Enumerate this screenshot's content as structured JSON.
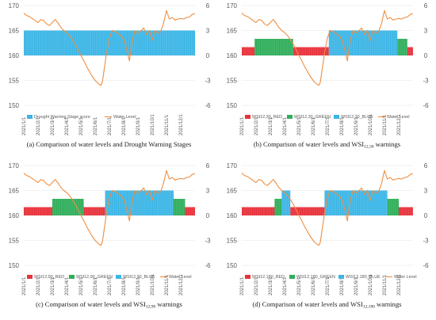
{
  "figure": {
    "colors": {
      "red": "#E8313A",
      "green": "#2FAE5A",
      "blue": "#3BB6E6",
      "water": "#ED8F43",
      "axis_text": "#595959",
      "grid": "#E6E6E6"
    }
  },
  "chart_data": [
    {
      "panel_id": "a",
      "type": "bar",
      "caption_prefix": "(a) Comparison of water levels and Drought Warning Stages",
      "caption_sub": "",
      "caption_suffix": "",
      "ylim": [
        150,
        170
      ],
      "y_ticks": [
        "150",
        "155",
        "160",
        "165",
        "170"
      ],
      "y2lim": [
        -6,
        6
      ],
      "y2_ticks": [
        "-6",
        "-3",
        "0",
        "3",
        "6"
      ],
      "x_ticks": [
        "2021/1/1",
        "2021/2/1",
        "2021/3/1",
        "2021/4/1",
        "2021/5/1",
        "2021/6/1",
        "2021/7/1",
        "2021/8/1",
        "2021/9/1",
        "2021/10/1",
        "2021/11/1",
        "2021/12/1"
      ],
      "series": [
        {
          "name": "Drought Warning Stage score",
          "color": "#3BB6E6",
          "segments": [
            {
              "start": 0,
              "end": 12,
              "value": 3
            }
          ]
        }
      ],
      "water_level": {
        "name": "Water Level",
        "color": "#ED8F43",
        "months": [
          0,
          0.2,
          0.4,
          0.6,
          0.8,
          1.0,
          1.2,
          1.4,
          1.6,
          1.8,
          2.0,
          2.2,
          2.4,
          2.6,
          2.8,
          3.0,
          3.2,
          3.4,
          3.6,
          3.8,
          4.0,
          4.2,
          4.4,
          4.6,
          4.8,
          5.0,
          5.2,
          5.4,
          5.5,
          5.6,
          5.8,
          6.0,
          6.2,
          6.4,
          6.6,
          6.8,
          7.0,
          7.2,
          7.4,
          7.6,
          7.8,
          8.0,
          8.2,
          8.4,
          8.6,
          8.8,
          9.0,
          9.2,
          9.4,
          9.6,
          9.8,
          10.0,
          10.2,
          10.4,
          10.6,
          10.8,
          11.0,
          11.2,
          11.4,
          11.6,
          11.8,
          12.0
        ],
        "values": [
          168.5,
          168.0,
          167.8,
          167.4,
          167.0,
          166.6,
          167.2,
          167.0,
          166.3,
          166.0,
          166.6,
          167.2,
          166.5,
          165.6,
          165.0,
          164.6,
          164.0,
          163.2,
          162.3,
          161.2,
          160.0,
          159.0,
          157.8,
          156.8,
          155.8,
          155.0,
          154.4,
          154.0,
          154.6,
          156.5,
          160.5,
          163.5,
          165.0,
          164.8,
          164.4,
          164.0,
          163.2,
          161.4,
          158.9,
          163.0,
          165.0,
          164.5,
          164.9,
          165.5,
          164.2,
          165.0,
          163.0,
          165.0,
          164.5,
          164.8,
          166.5,
          169.0,
          167.3,
          167.6,
          167.1,
          167.3,
          167.4,
          167.3,
          167.6,
          167.7,
          168.2,
          168.4
        ]
      }
    },
    {
      "panel_id": "b",
      "type": "bar",
      "caption_prefix": "(b) Comparison of water levels and WSI",
      "caption_sub": "12,30",
      "caption_suffix": " warnings",
      "ylim": [
        150,
        170
      ],
      "y_ticks": [
        "150",
        "155",
        "160",
        "165",
        "170"
      ],
      "y2lim": [
        -6,
        6
      ],
      "y2_ticks": [
        "-6",
        "-3",
        "0",
        "3",
        "6"
      ],
      "x_ticks": [
        "2021/1/1",
        "2021/2/1",
        "2021/3/1",
        "2021/4/1",
        "2021/5/1",
        "2021/6/1",
        "2021/7/1",
        "2021/8/1",
        "2021/9/1",
        "2021/10/1",
        "2021/11/1",
        "2021/12/1"
      ],
      "series": [
        {
          "name": "WSI12,30_RED",
          "color": "#E8313A",
          "segments": [
            {
              "start": 0,
              "end": 0.9,
              "value": 1
            },
            {
              "start": 3.6,
              "end": 6.1,
              "value": 1
            },
            {
              "start": 11.6,
              "end": 12,
              "value": 1
            }
          ]
        },
        {
          "name": "WSI12,30_GREEN",
          "color": "#2FAE5A",
          "segments": [
            {
              "start": 0.9,
              "end": 3.6,
              "value": 2
            },
            {
              "start": 10.9,
              "end": 11.6,
              "value": 2
            }
          ]
        },
        {
          "name": "WSI12,30_BLUE",
          "color": "#3BB6E6",
          "segments": [
            {
              "start": 6.1,
              "end": 10.9,
              "value": 3
            }
          ]
        }
      ],
      "water_level": {
        "name": "Water Level",
        "color": "#ED8F43",
        "months": [
          0,
          0.2,
          0.4,
          0.6,
          0.8,
          1.0,
          1.2,
          1.4,
          1.6,
          1.8,
          2.0,
          2.2,
          2.4,
          2.6,
          2.8,
          3.0,
          3.2,
          3.4,
          3.6,
          3.8,
          4.0,
          4.2,
          4.4,
          4.6,
          4.8,
          5.0,
          5.2,
          5.4,
          5.5,
          5.6,
          5.8,
          6.0,
          6.2,
          6.4,
          6.6,
          6.8,
          7.0,
          7.2,
          7.4,
          7.6,
          7.8,
          8.0,
          8.2,
          8.4,
          8.6,
          8.8,
          9.0,
          9.2,
          9.4,
          9.6,
          9.8,
          10.0,
          10.2,
          10.4,
          10.6,
          10.8,
          11.0,
          11.2,
          11.4,
          11.6,
          11.8,
          12.0
        ],
        "values": [
          168.5,
          168.0,
          167.8,
          167.4,
          167.0,
          166.6,
          167.2,
          167.0,
          166.3,
          166.0,
          166.6,
          167.2,
          166.5,
          165.6,
          165.0,
          164.6,
          164.0,
          163.2,
          162.3,
          161.2,
          160.0,
          159.0,
          157.8,
          156.8,
          155.8,
          155.0,
          154.4,
          154.0,
          154.6,
          156.5,
          160.5,
          163.5,
          165.0,
          164.8,
          164.4,
          164.0,
          163.2,
          161.4,
          158.9,
          163.0,
          165.0,
          164.5,
          164.9,
          165.5,
          164.2,
          165.0,
          163.0,
          165.0,
          164.5,
          164.8,
          166.5,
          169.0,
          167.3,
          167.6,
          167.1,
          167.3,
          167.4,
          167.3,
          167.6,
          167.7,
          168.2,
          168.4
        ]
      }
    },
    {
      "panel_id": "c",
      "type": "bar",
      "caption_prefix": "(c) Comparison of water levels and WSI",
      "caption_sub": "12,90",
      "caption_suffix": " warnings",
      "ylim": [
        150,
        170
      ],
      "y_ticks": [
        "150",
        "155",
        "160",
        "165",
        "170"
      ],
      "y2lim": [
        -6,
        6
      ],
      "y2_ticks": [
        "-6",
        "-3",
        "0",
        "3",
        "6"
      ],
      "x_ticks": [
        "2021/1/1",
        "2021/2/1",
        "2021/3/1",
        "2021/4/1",
        "2021/5/1",
        "2021/6/1",
        "2021/7/1",
        "2021/8/1",
        "2021/9/1",
        "2021/10/1",
        "2021/11/1",
        "2021/12/1"
      ],
      "series": [
        {
          "name": "WSI12,90_RED",
          "color": "#E8313A",
          "segments": [
            {
              "start": 0,
              "end": 2.0,
              "value": 1
            },
            {
              "start": 4.2,
              "end": 5.7,
              "value": 1
            },
            {
              "start": 11.3,
              "end": 12,
              "value": 1
            }
          ]
        },
        {
          "name": "WSI12,90_GREEN",
          "color": "#2FAE5A",
          "segments": [
            {
              "start": 2.0,
              "end": 4.2,
              "value": 2
            },
            {
              "start": 10.5,
              "end": 11.3,
              "value": 2
            }
          ]
        },
        {
          "name": "WSI12,90_BLUE",
          "color": "#3BB6E6",
          "segments": [
            {
              "start": 5.7,
              "end": 10.5,
              "value": 3
            }
          ]
        }
      ],
      "water_level": {
        "name": "Water Level",
        "color": "#ED8F43",
        "months": [
          0,
          0.2,
          0.4,
          0.6,
          0.8,
          1.0,
          1.2,
          1.4,
          1.6,
          1.8,
          2.0,
          2.2,
          2.4,
          2.6,
          2.8,
          3.0,
          3.2,
          3.4,
          3.6,
          3.8,
          4.0,
          4.2,
          4.4,
          4.6,
          4.8,
          5.0,
          5.2,
          5.4,
          5.5,
          5.6,
          5.8,
          6.0,
          6.2,
          6.4,
          6.6,
          6.8,
          7.0,
          7.2,
          7.4,
          7.6,
          7.8,
          8.0,
          8.2,
          8.4,
          8.6,
          8.8,
          9.0,
          9.2,
          9.4,
          9.6,
          9.8,
          10.0,
          10.2,
          10.4,
          10.6,
          10.8,
          11.0,
          11.2,
          11.4,
          11.6,
          11.8,
          12.0
        ],
        "values": [
          168.5,
          168.0,
          167.8,
          167.4,
          167.0,
          166.6,
          167.2,
          167.0,
          166.3,
          166.0,
          166.6,
          167.2,
          166.5,
          165.6,
          165.0,
          164.6,
          164.0,
          163.2,
          162.3,
          161.2,
          160.0,
          159.0,
          157.8,
          156.8,
          155.8,
          155.0,
          154.4,
          154.0,
          154.6,
          156.5,
          160.5,
          163.5,
          165.0,
          164.8,
          164.4,
          164.0,
          163.2,
          161.4,
          158.9,
          163.0,
          165.0,
          164.5,
          164.9,
          165.5,
          164.2,
          165.0,
          163.0,
          165.0,
          164.5,
          164.8,
          166.5,
          169.0,
          167.3,
          167.6,
          167.1,
          167.3,
          167.4,
          167.3,
          167.6,
          167.7,
          168.2,
          168.4
        ]
      }
    },
    {
      "panel_id": "d",
      "type": "bar",
      "caption_prefix": "(d) Comparison of water levels and WSI",
      "caption_sub": "12,180",
      "caption_suffix": " warnings",
      "ylim": [
        150,
        170
      ],
      "y_ticks": [
        "150",
        "155",
        "160",
        "165",
        "170"
      ],
      "y2lim": [
        -6,
        6
      ],
      "y2_ticks": [
        "-6",
        "-3",
        "0",
        "3",
        "6"
      ],
      "x_ticks": [
        "2021/1/1",
        "2021/2/1",
        "2021/3/1",
        "2021/4/1",
        "2021/5/1",
        "2021/6/1",
        "2021/7/1",
        "2021/8/1",
        "2021/9/1",
        "2021/10/1",
        "2021/11/1",
        "2021/12/1"
      ],
      "series": [
        {
          "name": "WSI12,180_RED",
          "color": "#E8313A",
          "segments": [
            {
              "start": 0,
              "end": 2.3,
              "value": 1
            },
            {
              "start": 3.4,
              "end": 5.8,
              "value": 1
            },
            {
              "start": 11.0,
              "end": 12,
              "value": 1
            }
          ]
        },
        {
          "name": "WSI12,180_GREEN",
          "color": "#2FAE5A",
          "segments": [
            {
              "start": 2.3,
              "end": 2.8,
              "value": 2
            },
            {
              "start": 10.2,
              "end": 11.0,
              "value": 2
            }
          ]
        },
        {
          "name": "WSI12,180_BLUE",
          "color": "#3BB6E6",
          "segments": [
            {
              "start": 2.8,
              "end": 3.4,
              "value": 3
            },
            {
              "start": 5.8,
              "end": 10.2,
              "value": 3
            }
          ]
        }
      ],
      "water_level": {
        "name": "Water Level",
        "color": "#ED8F43",
        "months": [
          0,
          0.2,
          0.4,
          0.6,
          0.8,
          1.0,
          1.2,
          1.4,
          1.6,
          1.8,
          2.0,
          2.2,
          2.4,
          2.6,
          2.8,
          3.0,
          3.2,
          3.4,
          3.6,
          3.8,
          4.0,
          4.2,
          4.4,
          4.6,
          4.8,
          5.0,
          5.2,
          5.4,
          5.5,
          5.6,
          5.8,
          6.0,
          6.2,
          6.4,
          6.6,
          6.8,
          7.0,
          7.2,
          7.4,
          7.6,
          7.8,
          8.0,
          8.2,
          8.4,
          8.6,
          8.8,
          9.0,
          9.2,
          9.4,
          9.6,
          9.8,
          10.0,
          10.2,
          10.4,
          10.6,
          10.8,
          11.0,
          11.2,
          11.4,
          11.6,
          11.8,
          12.0
        ],
        "values": [
          168.5,
          168.0,
          167.8,
          167.4,
          167.0,
          166.6,
          167.2,
          167.0,
          166.3,
          166.0,
          166.6,
          167.2,
          166.5,
          165.6,
          165.0,
          164.6,
          164.0,
          163.2,
          162.3,
          161.2,
          160.0,
          159.0,
          157.8,
          156.8,
          155.8,
          155.0,
          154.4,
          154.0,
          154.6,
          156.5,
          160.5,
          163.5,
          165.0,
          164.8,
          164.4,
          164.0,
          163.2,
          161.4,
          158.9,
          163.0,
          165.0,
          164.5,
          164.9,
          165.5,
          164.2,
          165.0,
          163.0,
          165.0,
          164.5,
          164.8,
          166.5,
          169.0,
          167.3,
          167.6,
          167.1,
          167.3,
          167.4,
          167.3,
          167.6,
          167.7,
          168.2,
          168.4
        ]
      }
    }
  ]
}
